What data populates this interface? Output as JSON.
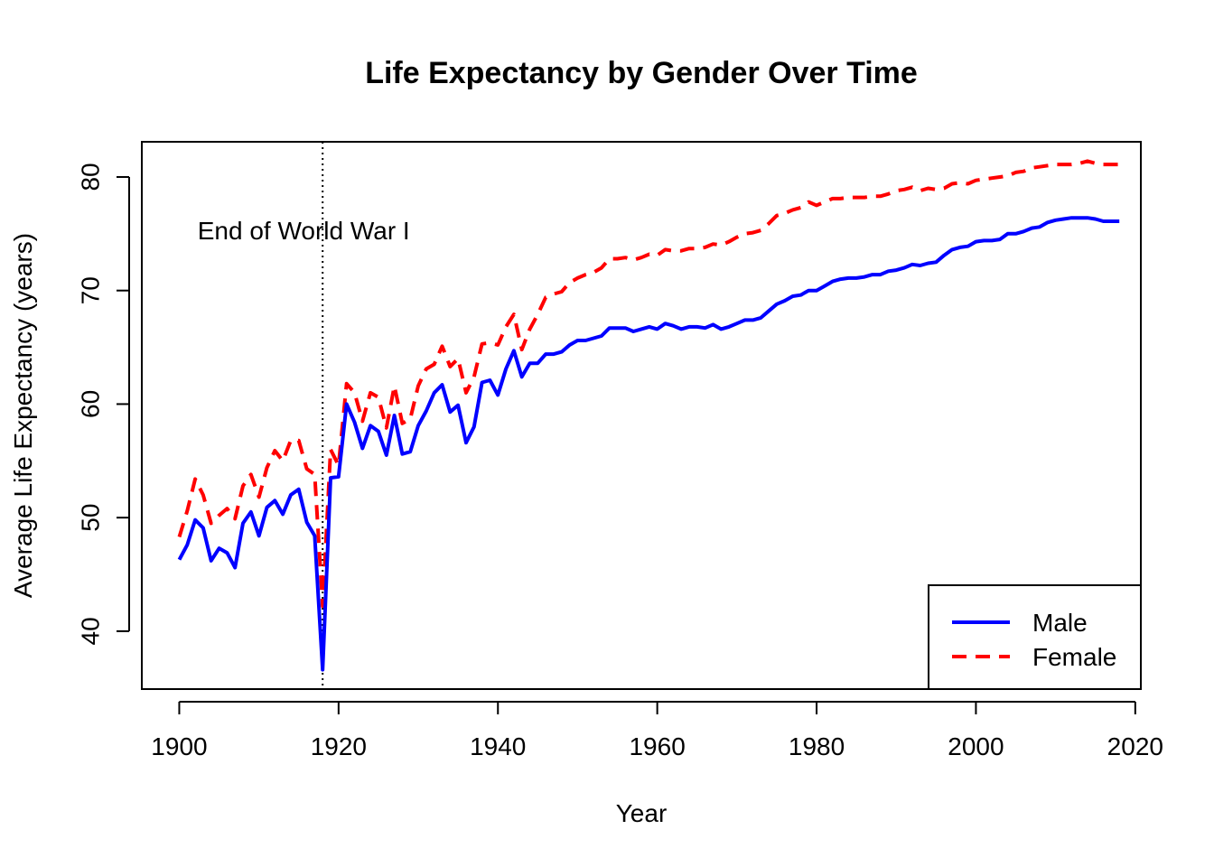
{
  "chart_data": {
    "type": "line",
    "title": "Life Expectancy by Gender Over Time",
    "xlabel": "Year",
    "ylabel": "Average Life Expectancy (years)",
    "xlim": [
      1895.3,
      2020.7
    ],
    "ylim": [
      34.9,
      83.1
    ],
    "x_ticks": [
      1900,
      1920,
      1940,
      1960,
      1980,
      2000,
      2020
    ],
    "y_ticks": [
      40,
      50,
      60,
      70,
      80
    ],
    "x": [
      1900,
      1901,
      1902,
      1903,
      1904,
      1905,
      1906,
      1907,
      1908,
      1909,
      1910,
      1911,
      1912,
      1913,
      1914,
      1915,
      1916,
      1917,
      1918,
      1919,
      1920,
      1921,
      1922,
      1923,
      1924,
      1925,
      1926,
      1927,
      1928,
      1929,
      1930,
      1931,
      1932,
      1933,
      1934,
      1935,
      1936,
      1937,
      1938,
      1939,
      1940,
      1941,
      1942,
      1943,
      1944,
      1945,
      1946,
      1947,
      1948,
      1949,
      1950,
      1951,
      1952,
      1953,
      1954,
      1955,
      1956,
      1957,
      1958,
      1959,
      1960,
      1961,
      1962,
      1963,
      1964,
      1965,
      1966,
      1967,
      1968,
      1969,
      1970,
      1971,
      1972,
      1973,
      1974,
      1975,
      1976,
      1977,
      1978,
      1979,
      1980,
      1981,
      1982,
      1983,
      1984,
      1985,
      1986,
      1987,
      1988,
      1989,
      1990,
      1991,
      1992,
      1993,
      1994,
      1995,
      1996,
      1997,
      1998,
      1999,
      2000,
      2001,
      2002,
      2003,
      2004,
      2005,
      2006,
      2007,
      2008,
      2009,
      2010,
      2011,
      2012,
      2013,
      2014,
      2015,
      2016,
      2017,
      2018
    ],
    "series": [
      {
        "name": "Male",
        "color": "#0000ff",
        "line_style": "solid",
        "values": [
          46.3,
          47.6,
          49.8,
          49.1,
          46.2,
          47.3,
          46.9,
          45.6,
          49.5,
          50.5,
          48.4,
          50.9,
          51.5,
          50.3,
          52.0,
          52.5,
          49.6,
          48.4,
          36.6,
          53.5,
          53.6,
          60.0,
          58.4,
          56.1,
          58.1,
          57.6,
          55.5,
          59.0,
          55.6,
          55.8,
          58.1,
          59.4,
          61.0,
          61.7,
          59.3,
          59.9,
          56.6,
          58.0,
          61.9,
          62.1,
          60.8,
          63.1,
          64.7,
          62.4,
          63.6,
          63.6,
          64.4,
          64.4,
          64.6,
          65.2,
          65.6,
          65.6,
          65.8,
          66.0,
          66.7,
          66.7,
          66.7,
          66.4,
          66.6,
          66.8,
          66.6,
          67.1,
          66.9,
          66.6,
          66.8,
          66.8,
          66.7,
          67.0,
          66.6,
          66.8,
          67.1,
          67.4,
          67.4,
          67.6,
          68.2,
          68.8,
          69.1,
          69.5,
          69.6,
          70.0,
          70.0,
          70.4,
          70.8,
          71.0,
          71.1,
          71.1,
          71.2,
          71.4,
          71.4,
          71.7,
          71.8,
          72.0,
          72.3,
          72.2,
          72.4,
          72.5,
          73.1,
          73.6,
          73.8,
          73.9,
          74.3,
          74.4,
          74.4,
          74.5,
          75.0,
          75.0,
          75.2,
          75.5,
          75.6,
          76.0,
          76.2,
          76.3,
          76.4,
          76.4,
          76.4,
          76.3,
          76.1,
          76.1,
          76.1
        ]
      },
      {
        "name": "Female",
        "color": "#ff0000",
        "line_style": "dashed",
        "values": [
          48.3,
          50.6,
          53.4,
          52.0,
          49.5,
          50.2,
          50.8,
          49.9,
          52.8,
          53.8,
          51.8,
          54.4,
          55.9,
          55.0,
          56.8,
          56.8,
          54.3,
          53.8,
          42.2,
          56.0,
          54.6,
          61.8,
          61.0,
          58.5,
          61.0,
          60.6,
          57.9,
          61.6,
          58.3,
          58.7,
          61.6,
          63.1,
          63.5,
          65.1,
          63.3,
          64.0,
          61.0,
          62.4,
          65.3,
          65.4,
          65.2,
          66.8,
          67.9,
          64.8,
          66.6,
          67.9,
          69.4,
          69.7,
          69.9,
          70.7,
          71.1,
          71.4,
          71.6,
          72.0,
          72.8,
          72.8,
          72.9,
          72.7,
          72.9,
          73.2,
          73.1,
          73.6,
          73.5,
          73.5,
          73.7,
          73.7,
          73.8,
          74.1,
          74.0,
          74.3,
          74.7,
          75.0,
          75.1,
          75.3,
          75.9,
          76.6,
          76.8,
          77.1,
          77.3,
          77.8,
          77.5,
          77.8,
          78.1,
          78.1,
          78.2,
          78.2,
          78.2,
          78.3,
          78.3,
          78.5,
          78.8,
          78.9,
          79.1,
          78.8,
          79.0,
          78.9,
          79.0,
          79.4,
          79.5,
          79.4,
          79.7,
          79.8,
          79.9,
          80.0,
          80.1,
          80.4,
          80.5,
          80.8,
          80.9,
          81.0,
          81.1,
          81.1,
          81.1,
          81.2,
          81.4,
          81.2,
          81.1,
          81.1,
          81.1
        ]
      }
    ],
    "annotation": {
      "vline_x": 1918,
      "text": "End of World War I",
      "text_x": 1902.3,
      "text_y": 74.5
    },
    "legend": {
      "position": "bottom-right",
      "entries": [
        "Male",
        "Female"
      ]
    },
    "grid": false
  }
}
